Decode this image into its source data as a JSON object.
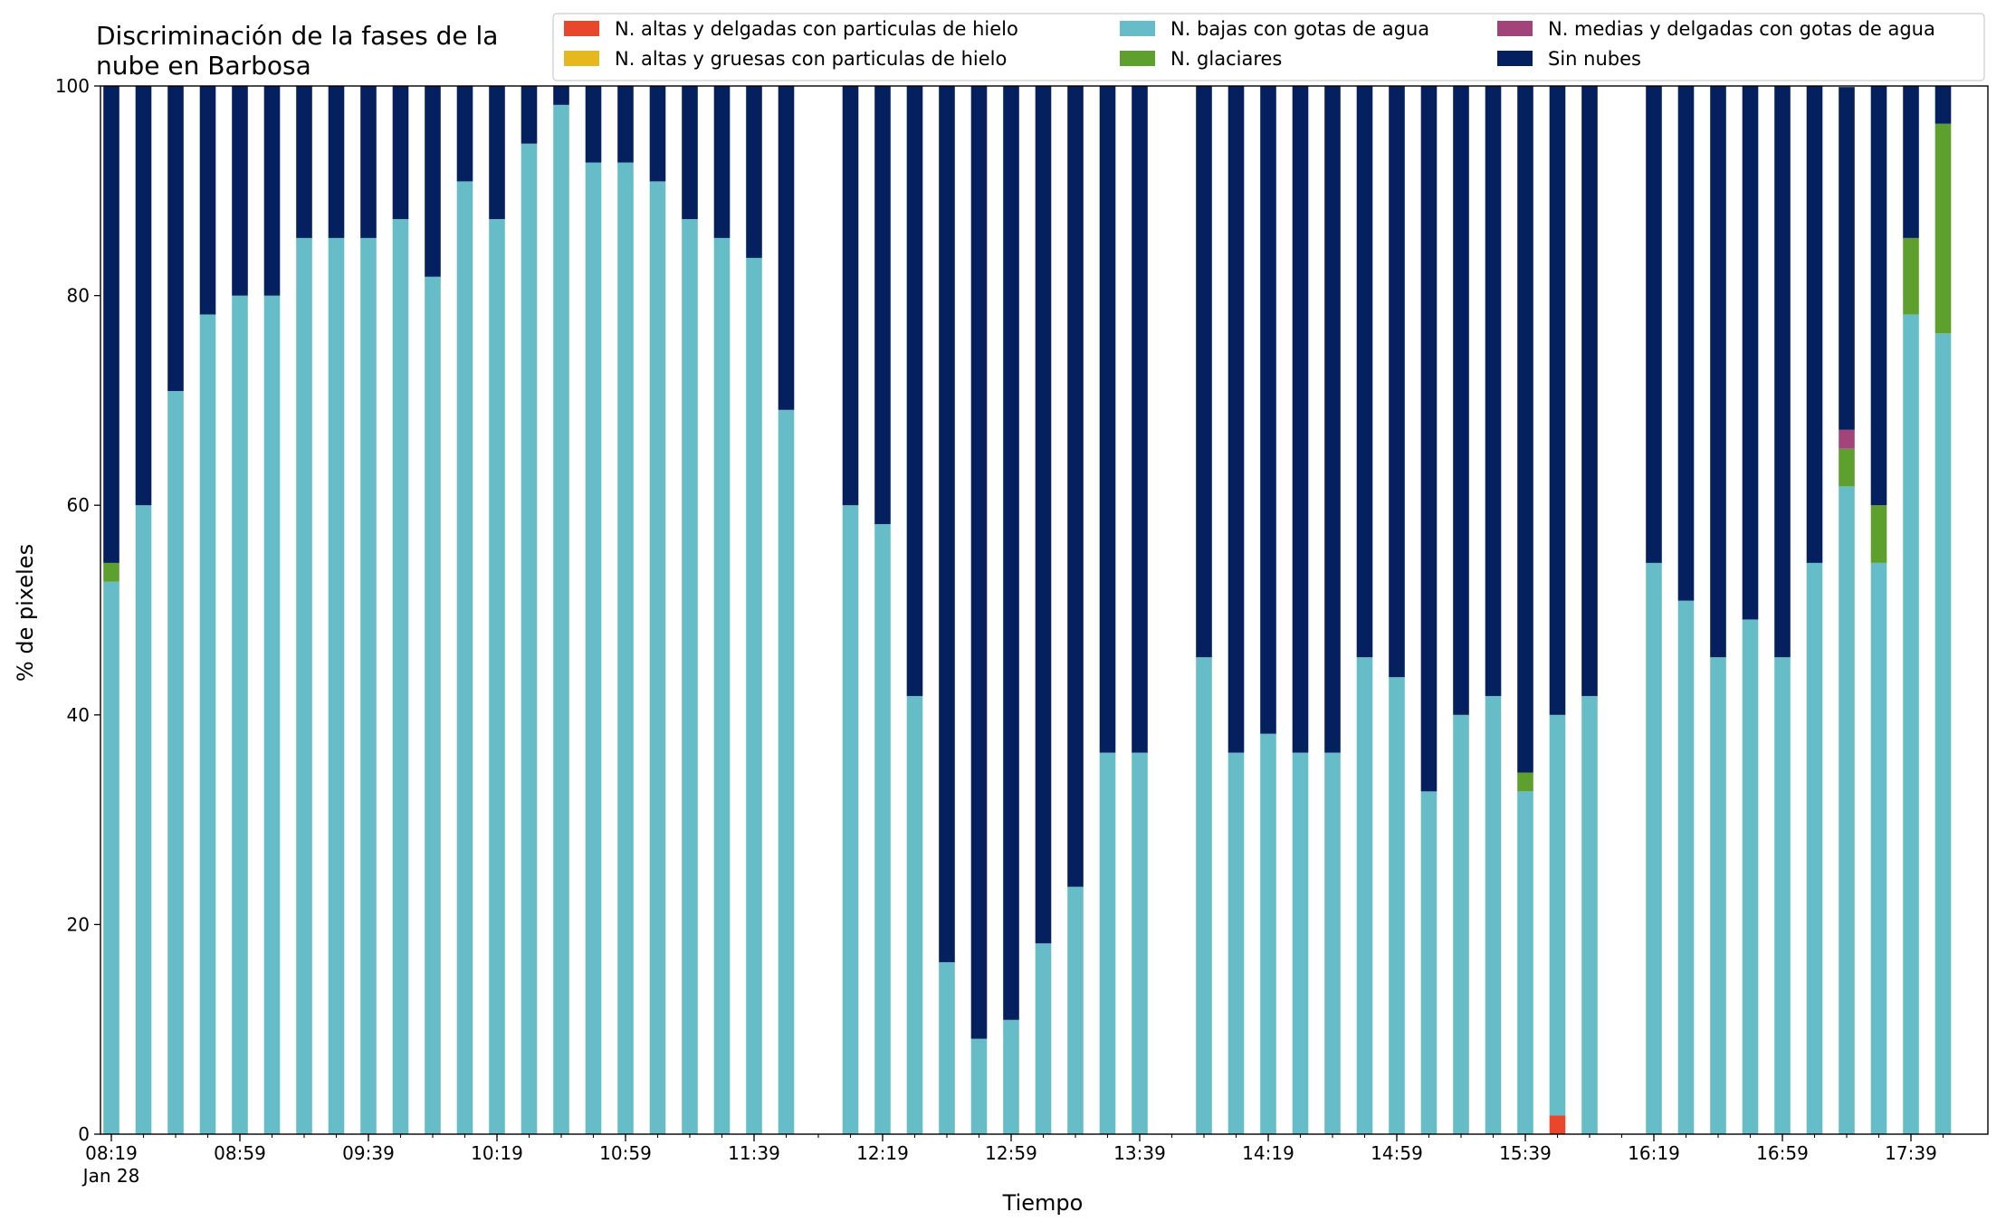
{
  "chart_data": {
    "type": "bar",
    "stacked": true,
    "title": "Discriminación de la fases de la\nnube en Barbosa",
    "xlabel": "Tiempo",
    "ylabel": "% de pixeles",
    "ylim": [
      0,
      100
    ],
    "yticks": [
      0,
      20,
      40,
      60,
      80,
      100
    ],
    "grid": false,
    "legend_position": "top-right",
    "x_time_range": [
      "08:19",
      "17:49"
    ],
    "x_step_minutes": 10,
    "xtick_labels": [
      "08:19",
      "08:59",
      "09:39",
      "10:19",
      "10:59",
      "11:39",
      "12:19",
      "12:59",
      "13:39",
      "14:19",
      "14:59",
      "15:39",
      "16:19",
      "16:59",
      "17:39"
    ],
    "x_date_label": "Jan 28",
    "categories": [
      "08:19",
      "08:29",
      "08:39",
      "08:49",
      "08:59",
      "09:09",
      "09:19",
      "09:29",
      "09:39",
      "09:49",
      "09:59",
      "10:09",
      "10:19",
      "10:29",
      "10:39",
      "10:49",
      "10:59",
      "11:09",
      "11:19",
      "11:29",
      "11:39",
      "11:49",
      "12:09",
      "12:19",
      "12:29",
      "12:39",
      "12:49",
      "12:59",
      "13:09",
      "13:19",
      "13:29",
      "13:39",
      "13:59",
      "14:09",
      "14:19",
      "14:29",
      "14:39",
      "14:49",
      "14:59",
      "15:09",
      "15:19",
      "15:29",
      "15:39",
      "15:49",
      "15:59",
      "16:19",
      "16:29",
      "16:39",
      "16:49",
      "16:59",
      "17:09",
      "17:19",
      "17:29",
      "17:39",
      "17:49"
    ],
    "series": [
      {
        "name": "N. altas y delgadas con particulas de hielo",
        "color": "#e8472b",
        "values": [
          0,
          0,
          0,
          0,
          0,
          0,
          0,
          0,
          0,
          0,
          0,
          0,
          0,
          0,
          0,
          0,
          0,
          0,
          0,
          0,
          0,
          0,
          0,
          0,
          0,
          0,
          0,
          0,
          0,
          0,
          0,
          0,
          0,
          0,
          0,
          0,
          0,
          0,
          0,
          0,
          0,
          0,
          0,
          1.8,
          0,
          0,
          0,
          0,
          0,
          0,
          0,
          0,
          0,
          0,
          0
        ]
      },
      {
        "name": "N. altas y gruesas con particulas de hielo",
        "color": "#e6b820",
        "values": [
          0,
          0,
          0,
          0,
          0,
          0,
          0,
          0,
          0,
          0,
          0,
          0,
          0,
          0,
          0,
          0,
          0,
          0,
          0,
          0,
          0,
          0,
          0,
          0,
          0,
          0,
          0,
          0,
          0,
          0,
          0,
          0,
          0,
          0,
          0,
          0,
          0,
          0,
          0,
          0,
          0,
          0,
          0,
          0,
          0,
          0,
          0,
          0,
          0,
          0,
          0,
          0,
          0,
          0,
          0
        ]
      },
      {
        "name": "N. bajas con gotas de agua",
        "color": "#66bdc8",
        "values": [
          52.7,
          60,
          70.9,
          78.2,
          80,
          80,
          85.5,
          85.5,
          85.5,
          87.3,
          81.8,
          90.9,
          87.3,
          94.5,
          98.2,
          92.7,
          92.7,
          90.9,
          87.3,
          85.5,
          83.6,
          69.1,
          60,
          58.2,
          41.8,
          16.4,
          9.1,
          10.9,
          18.2,
          23.6,
          36.4,
          36.4,
          45.5,
          36.4,
          38.2,
          36.4,
          36.4,
          45.5,
          43.6,
          32.7,
          40,
          41.8,
          32.7,
          38.2,
          41.8,
          54.5,
          50.9,
          45.5,
          49.1,
          45.5,
          54.5,
          61.8,
          54.5,
          78.2,
          76.4
        ]
      },
      {
        "name": "N. glaciares",
        "color": "#5ea02e",
        "values": [
          1.8,
          0,
          0,
          0,
          0,
          0,
          0,
          0,
          0,
          0,
          0,
          0,
          0,
          0,
          0,
          0,
          0,
          0,
          0,
          0,
          0,
          0,
          0,
          0,
          0,
          0,
          0,
          0,
          0,
          0,
          0,
          0,
          0,
          0,
          0,
          0,
          0,
          0,
          0,
          0,
          0,
          0,
          1.8,
          0,
          0,
          0,
          0,
          0,
          0,
          0,
          0,
          3.6,
          5.5,
          7.3,
          20
        ]
      },
      {
        "name": "N. medias y delgadas con gotas de agua",
        "color": "#a2437a",
        "values": [
          0,
          0,
          0,
          0,
          0,
          0,
          0,
          0,
          0,
          0,
          0,
          0,
          0,
          0,
          0,
          0,
          0,
          0,
          0,
          0,
          0,
          0,
          0,
          0,
          0,
          0,
          0,
          0,
          0,
          0,
          0,
          0,
          0,
          0,
          0,
          0,
          0,
          0,
          0,
          0,
          0,
          0,
          0,
          0,
          0,
          0,
          0,
          0,
          0,
          0,
          0,
          1.8,
          0,
          0,
          0
        ]
      },
      {
        "name": "Sin nubes",
        "color": "#04205f",
        "values": [
          45.5,
          40,
          29.1,
          21.8,
          20,
          20,
          14.5,
          14.5,
          14.5,
          12.7,
          18.2,
          9.1,
          12.7,
          5.5,
          1.8,
          7.3,
          7.3,
          9.1,
          12.7,
          14.5,
          16.4,
          30.9,
          40,
          41.8,
          58.2,
          83.6,
          90.9,
          89.1,
          81.8,
          76.4,
          63.6,
          63.6,
          54.5,
          63.6,
          61.8,
          63.6,
          63.6,
          54.5,
          56.4,
          67.3,
          60,
          58.2,
          65.5,
          60,
          58.2,
          45.5,
          49.1,
          54.5,
          50.9,
          54.5,
          45.5,
          32.7,
          40,
          14.5,
          3.6
        ]
      }
    ]
  }
}
